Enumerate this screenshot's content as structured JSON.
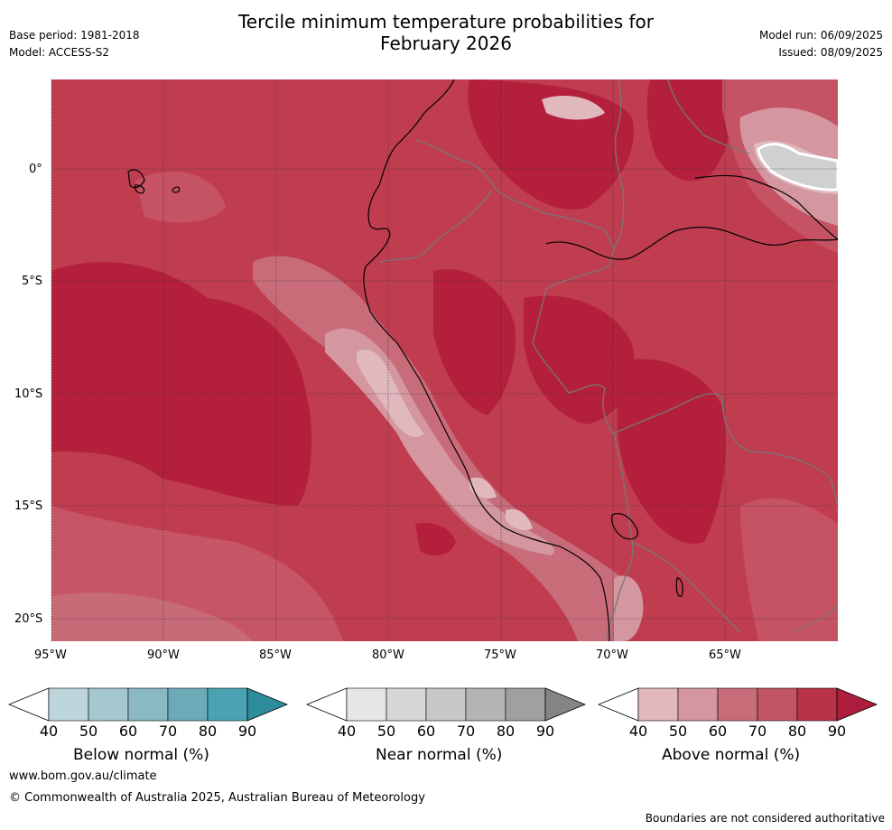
{
  "header": {
    "title_line1": "Tercile minimum temperature probabilities for",
    "title_line2": "February 2026",
    "base_period": "Base period: 1981-2018",
    "model": "Model: ACCESS-S2",
    "model_run": "Model run: 06/09/2025",
    "issued": "Issued: 08/09/2025"
  },
  "map": {
    "lat_ticks": [
      "0°",
      "5°S",
      "10°S",
      "15°S",
      "20°S"
    ],
    "lon_ticks": [
      "95°W",
      "90°W",
      "85°W",
      "80°W",
      "75°W",
      "70°W",
      "65°W"
    ],
    "colors": {
      "land_border": "#777777",
      "coast": "#000000",
      "grid": "#333333"
    }
  },
  "colorbars": [
    {
      "name": "below",
      "label": "Below normal (%)",
      "ticks": [
        "40",
        "50",
        "60",
        "70",
        "80",
        "90"
      ],
      "colors": [
        "#bcd6dc",
        "#a5c7cf",
        "#8ab8c3",
        "#6babb8",
        "#4aa2b2",
        "#2e8c9c"
      ]
    },
    {
      "name": "near",
      "label": "Near normal (%)",
      "ticks": [
        "40",
        "50",
        "60",
        "70",
        "80",
        "90"
      ],
      "colors": [
        "#e6e6e6",
        "#d6d6d6",
        "#c8c8c8",
        "#b4b4b4",
        "#a0a0a0",
        "#848484"
      ]
    },
    {
      "name": "above",
      "label": "Above normal (%)",
      "ticks": [
        "40",
        "50",
        "60",
        "70",
        "80",
        "90"
      ],
      "colors": [
        "#e0b8be",
        "#d4969f",
        "#c96c7a",
        "#c25563",
        "#b93347",
        "#ac1e3b"
      ]
    }
  ],
  "footer": {
    "url": "www.bom.gov.au/climate",
    "copyright": "© Commonwealth of Australia 2025, Australian Bureau of Meteorology",
    "disclaimer": "Boundaries are not considered authoritative"
  }
}
